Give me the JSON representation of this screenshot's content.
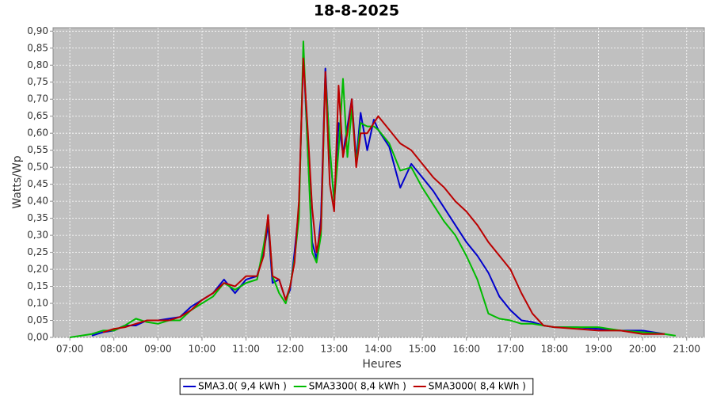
{
  "chart_data": {
    "type": "line",
    "title": "18-8-2025",
    "x_label": "Heures",
    "y_label": "Watts/Wp",
    "x": [
      7.0,
      7.5,
      7.75,
      8.0,
      8.25,
      8.5,
      8.75,
      9.0,
      9.25,
      9.5,
      9.75,
      10.0,
      10.25,
      10.5,
      10.75,
      11.0,
      11.25,
      11.4,
      11.5,
      11.6,
      11.75,
      11.9,
      12.0,
      12.1,
      12.2,
      12.3,
      12.4,
      12.5,
      12.6,
      12.7,
      12.8,
      12.9,
      13.0,
      13.1,
      13.2,
      13.3,
      13.4,
      13.5,
      13.6,
      13.75,
      13.9,
      14.0,
      14.25,
      14.5,
      14.75,
      15.0,
      15.25,
      15.5,
      15.75,
      16.0,
      16.25,
      16.5,
      16.75,
      17.0,
      17.25,
      17.5,
      17.75,
      18.0,
      18.5,
      19.0,
      19.5,
      20.0,
      20.5,
      20.75
    ],
    "series": [
      {
        "name": "SMA3.0( 9,4 kWh )",
        "color": "#0000cc",
        "values": [
          null,
          0.005,
          0.015,
          0.02,
          0.035,
          0.035,
          0.05,
          0.05,
          0.055,
          0.06,
          0.09,
          0.11,
          0.13,
          0.17,
          0.13,
          0.17,
          0.18,
          0.25,
          0.33,
          0.16,
          0.17,
          0.11,
          0.14,
          0.25,
          0.38,
          0.84,
          0.55,
          0.28,
          0.23,
          0.35,
          0.79,
          0.55,
          0.4,
          0.63,
          0.54,
          0.62,
          0.7,
          0.52,
          0.66,
          0.55,
          0.64,
          0.61,
          0.56,
          0.44,
          0.51,
          0.47,
          0.43,
          0.38,
          0.33,
          0.28,
          0.24,
          0.19,
          0.12,
          0.08,
          0.05,
          0.045,
          0.035,
          0.03,
          0.03,
          0.025,
          0.02,
          0.02,
          0.01,
          null
        ]
      },
      {
        "name": "SMA3300( 8,4 kWh )",
        "color": "#00bb00",
        "values": [
          0,
          0.01,
          0.02,
          0.02,
          0.035,
          0.055,
          0.045,
          0.04,
          0.05,
          0.05,
          0.08,
          0.1,
          0.12,
          0.16,
          0.14,
          0.16,
          0.17,
          0.27,
          0.35,
          0.18,
          0.13,
          0.1,
          0.15,
          0.23,
          0.35,
          0.87,
          0.55,
          0.25,
          0.22,
          0.3,
          0.77,
          0.56,
          0.4,
          0.55,
          0.76,
          0.53,
          0.67,
          0.51,
          0.63,
          0.62,
          0.62,
          0.61,
          0.57,
          0.49,
          0.5,
          0.44,
          0.39,
          0.34,
          0.3,
          0.24,
          0.17,
          0.07,
          0.055,
          0.05,
          0.04,
          0.04,
          0.035,
          0.03,
          0.03,
          0.03,
          0.02,
          0.015,
          0.01,
          0.005
        ]
      },
      {
        "name": "SMA3000( 8,4 kWh )",
        "color": "#bb0000",
        "values": [
          null,
          null,
          0.015,
          0.025,
          0.03,
          0.04,
          0.05,
          0.05,
          0.05,
          0.06,
          0.08,
          0.11,
          0.13,
          0.16,
          0.15,
          0.18,
          0.18,
          0.24,
          0.36,
          0.18,
          0.17,
          0.11,
          0.15,
          0.22,
          0.4,
          0.82,
          0.61,
          0.38,
          0.25,
          0.32,
          0.78,
          0.45,
          0.37,
          0.74,
          0.53,
          0.6,
          0.7,
          0.5,
          0.6,
          0.6,
          0.63,
          0.65,
          0.61,
          0.57,
          0.55,
          0.51,
          0.47,
          0.44,
          0.4,
          0.37,
          0.33,
          0.28,
          0.24,
          0.2,
          0.13,
          0.07,
          0.035,
          0.03,
          0.025,
          0.02,
          0.02,
          0.01,
          0.01,
          null
        ]
      }
    ],
    "xlim": [
      6.62,
      21.4
    ],
    "xticks": [
      {
        "value": 7,
        "label": "07:00"
      },
      {
        "value": 8,
        "label": "08:00"
      },
      {
        "value": 9,
        "label": "09:00"
      },
      {
        "value": 10,
        "label": "10:00"
      },
      {
        "value": 11,
        "label": "11:00"
      },
      {
        "value": 12,
        "label": "12:00"
      },
      {
        "value": 13,
        "label": "13:00"
      },
      {
        "value": 14,
        "label": "14:00"
      },
      {
        "value": 15,
        "label": "15:00"
      },
      {
        "value": 16,
        "label": "16:00"
      },
      {
        "value": 17,
        "label": "17:00"
      },
      {
        "value": 18,
        "label": "18:00"
      },
      {
        "value": 19,
        "label": "19:00"
      },
      {
        "value": 20,
        "label": "20:00"
      },
      {
        "value": 21,
        "label": "21:00"
      }
    ],
    "ylim": [
      0,
      0.91
    ],
    "yticks": [
      {
        "value": 0,
        "label": "0,00"
      },
      {
        "value": 0.05,
        "label": "0,05"
      },
      {
        "value": 0.1,
        "label": "0,10"
      },
      {
        "value": 0.15,
        "label": "0,15"
      },
      {
        "value": 0.2,
        "label": "0,20"
      },
      {
        "value": 0.25,
        "label": "0,25"
      },
      {
        "value": 0.3,
        "label": "0,30"
      },
      {
        "value": 0.35,
        "label": "0,35"
      },
      {
        "value": 0.4,
        "label": "0,40"
      },
      {
        "value": 0.45,
        "label": "0,45"
      },
      {
        "value": 0.5,
        "label": "0,50"
      },
      {
        "value": 0.55,
        "label": "0,55"
      },
      {
        "value": 0.6,
        "label": "0,60"
      },
      {
        "value": 0.65,
        "label": "0,65"
      },
      {
        "value": 0.7,
        "label": "0,70"
      },
      {
        "value": 0.75,
        "label": "0,75"
      },
      {
        "value": 0.8,
        "label": "0,80"
      },
      {
        "value": 0.85,
        "label": "0,85"
      },
      {
        "value": 0.9,
        "label": "0,90"
      }
    ],
    "grid": true,
    "legend": "bottom",
    "plot_background": "#c0c0c0"
  }
}
